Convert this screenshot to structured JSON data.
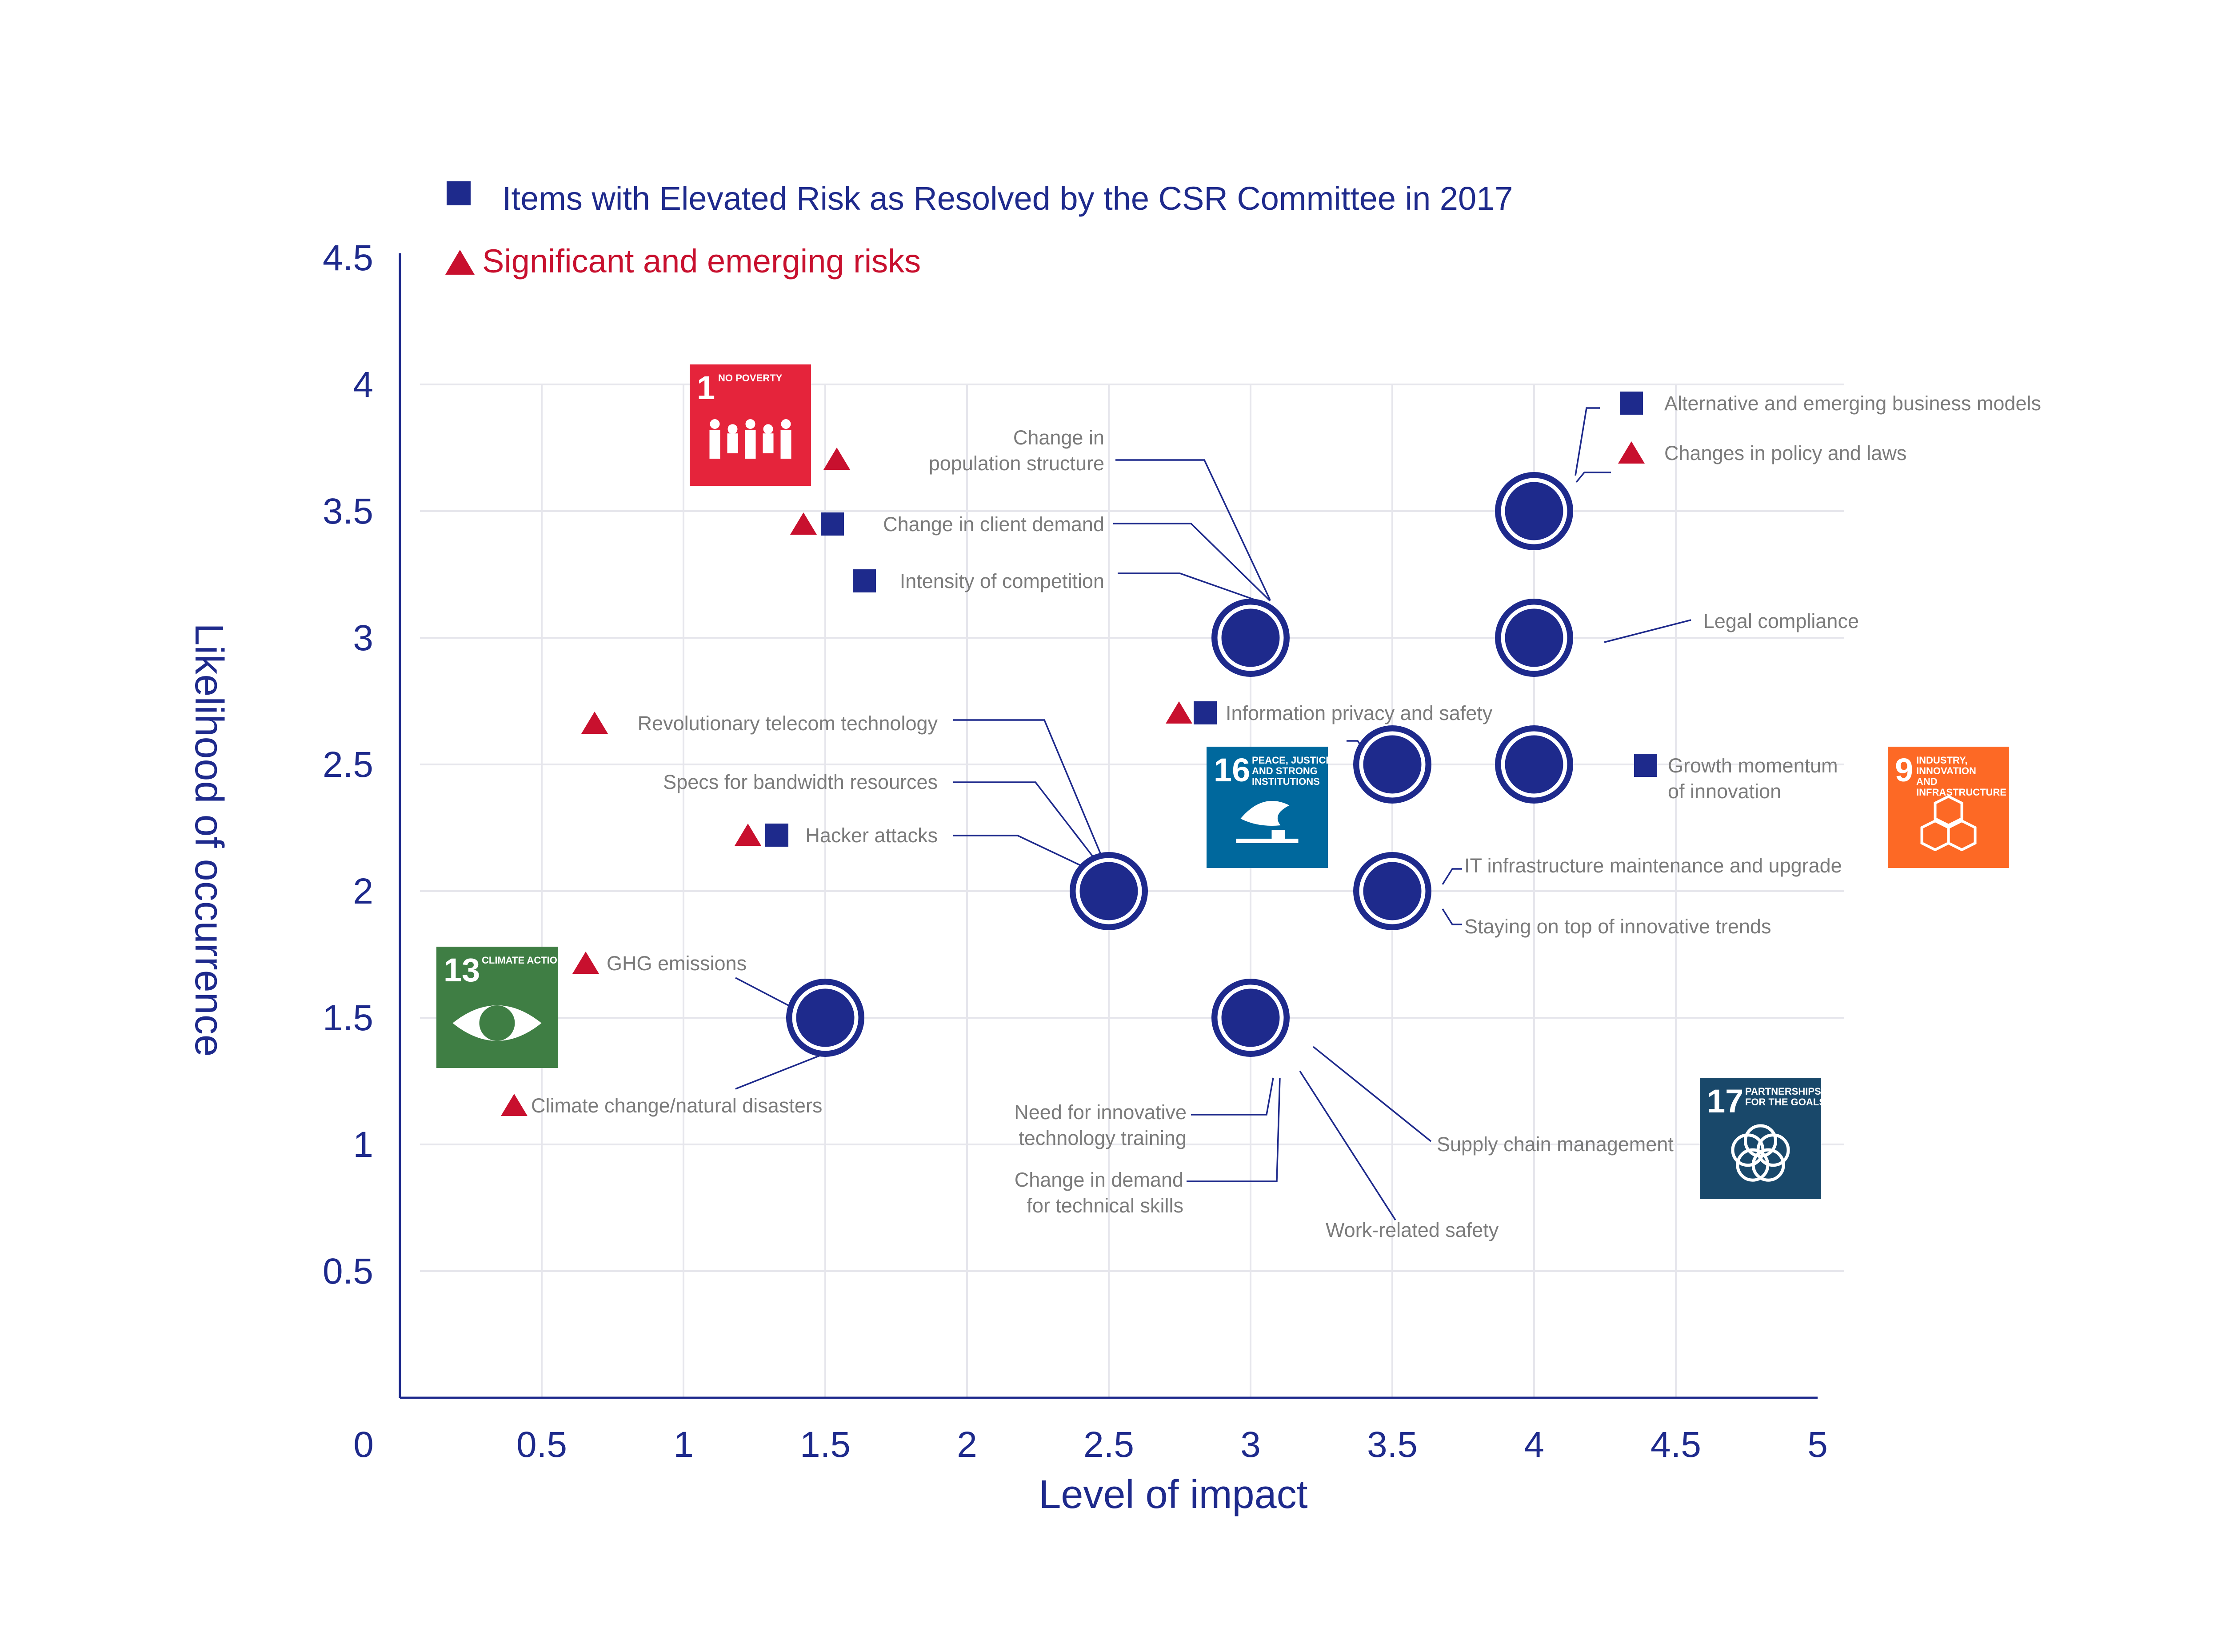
{
  "legend": {
    "square_label": "Items with Elevated Risk as Resolved by the CSR Committee in 2017",
    "triangle_label": "Significant and emerging risks"
  },
  "colors": {
    "navy": "#1e2a8c",
    "red": "#c8102e",
    "label_gray": "#7b7b7b",
    "grid": "#e6e6ec"
  },
  "sdg_badges": [
    {
      "id": "sdg1",
      "number": "1",
      "title": "NO POVERTY",
      "color": "#e5243b",
      "icon": "family-icon"
    },
    {
      "id": "sdg13",
      "number": "13",
      "title": "CLIMATE ACTION",
      "color": "#3f7e44",
      "icon": "eye-globe-icon"
    },
    {
      "id": "sdg16",
      "number": "16",
      "title": "PEACE, JUSTICE AND STRONG INSTITUTIONS",
      "color": "#00689d",
      "icon": "dove-gavel-icon"
    },
    {
      "id": "sdg9",
      "number": "9",
      "title": "INDUSTRY, INNOVATION AND INFRASTRUCTURE",
      "color": "#fd6925",
      "icon": "cubes-icon"
    },
    {
      "id": "sdg17",
      "number": "17",
      "title": "PARTNERSHIPS FOR THE GOALS",
      "color": "#19486a",
      "icon": "rings-icon"
    }
  ],
  "chart_data": {
    "type": "scatter",
    "xlabel": "Level of impact",
    "ylabel": "Likelihood of occurrence",
    "xlim": [
      0,
      5
    ],
    "ylim": [
      0,
      4.5
    ],
    "x_ticks": [
      "0",
      "0.5",
      "1",
      "1.5",
      "2",
      "2.5",
      "3",
      "3.5",
      "4",
      "4.5",
      "5"
    ],
    "y_ticks": [
      "0.5",
      "1",
      "1.5",
      "2",
      "2.5",
      "3",
      "3.5",
      "4",
      "4.5"
    ],
    "grid": true,
    "points": [
      {
        "x": 1.5,
        "y": 1.5,
        "items": [
          "GHG emissions",
          "Climate change/natural disasters"
        ]
      },
      {
        "x": 2.5,
        "y": 2.0,
        "items": [
          "Revolutionary telecom technology",
          "Specs for bandwidth resources",
          "Hacker attacks"
        ]
      },
      {
        "x": 3.0,
        "y": 3.0,
        "items": [
          "Change in population structure",
          "Change in client demand",
          "Intensity of competition"
        ]
      },
      {
        "x": 3.0,
        "y": 1.5,
        "items": [
          "Need for innovative technology training",
          "Change in demand for technical skills",
          "Supply chain management",
          "Work-related safety"
        ]
      },
      {
        "x": 3.5,
        "y": 2.5,
        "items": [
          "Information privacy and safety"
        ]
      },
      {
        "x": 3.5,
        "y": 2.0,
        "items": [
          "IT infrastructure maintenance and upgrade",
          "Staying on top of innovative trends"
        ]
      },
      {
        "x": 4.0,
        "y": 3.5,
        "items": [
          "Alternative and emerging business models",
          "Changes in policy and laws"
        ]
      },
      {
        "x": 4.0,
        "y": 3.0,
        "items": [
          "Legal compliance"
        ]
      },
      {
        "x": 4.0,
        "y": 2.5,
        "items": [
          "Growth momentum of innovation"
        ]
      }
    ],
    "risk_items": [
      {
        "id": "pop",
        "lines": [
          "Change in",
          "population structure"
        ],
        "markers": []
      },
      {
        "id": "demand",
        "lines": [
          "Change in client demand"
        ],
        "markers": [
          "triangle",
          "square"
        ]
      },
      {
        "id": "competition",
        "lines": [
          "Intensity of competition"
        ],
        "markers": [
          "square"
        ]
      },
      {
        "id": "ghg",
        "lines": [
          "GHG emissions"
        ],
        "markers": [
          "triangle"
        ]
      },
      {
        "id": "climate",
        "lines": [
          "Climate change/natural disasters"
        ],
        "markers": [
          "triangle"
        ]
      },
      {
        "id": "telecom",
        "lines": [
          "Revolutionary telecom technology"
        ],
        "markers": [
          "triangle"
        ]
      },
      {
        "id": "bandwidth",
        "lines": [
          "Specs for bandwidth resources"
        ],
        "markers": []
      },
      {
        "id": "hacker",
        "lines": [
          "Hacker attacks"
        ],
        "markers": [
          "triangle",
          "square"
        ]
      },
      {
        "id": "privacy",
        "lines": [
          "Information privacy and safety"
        ],
        "markers": [
          "triangle",
          "square"
        ]
      },
      {
        "id": "it",
        "lines": [
          "IT infrastructure maintenance and upgrade"
        ],
        "markers": []
      },
      {
        "id": "trends",
        "lines": [
          "Staying on top of innovative trends"
        ],
        "markers": []
      },
      {
        "id": "altbiz",
        "lines": [
          "Alternative and emerging business models"
        ],
        "markers": [
          "square"
        ]
      },
      {
        "id": "policy",
        "lines": [
          "Changes in policy and laws"
        ],
        "markers": [
          "triangle"
        ]
      },
      {
        "id": "legal",
        "lines": [
          "Legal compliance"
        ],
        "markers": []
      },
      {
        "id": "growth",
        "lines": [
          "Growth momentum",
          "of innovation"
        ],
        "markers": [
          "square"
        ]
      },
      {
        "id": "training",
        "lines": [
          "Need for innovative",
          "technology training"
        ],
        "markers": []
      },
      {
        "id": "skills",
        "lines": [
          "Change in demand",
          "for technical skills"
        ],
        "markers": []
      },
      {
        "id": "supply",
        "lines": [
          "Supply chain management"
        ],
        "markers": []
      },
      {
        "id": "safety",
        "lines": [
          "Work-related safety"
        ],
        "markers": []
      }
    ],
    "no_poverty_marker": {
      "marker": "triangle"
    }
  }
}
